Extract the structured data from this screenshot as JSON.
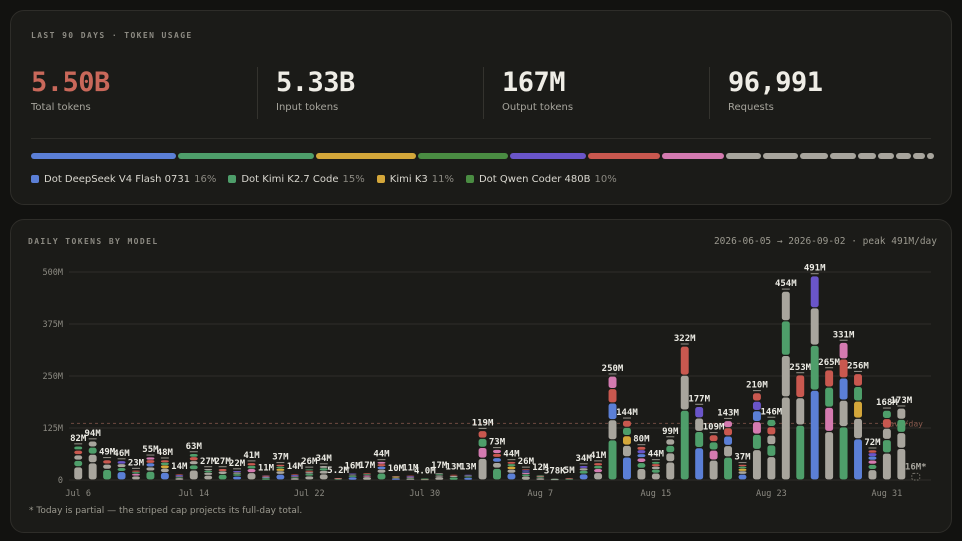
{
  "summary": {
    "eyebrow": "LAST 90 DAYS · TOKEN USAGE",
    "stats": [
      {
        "value": "5.50B",
        "label": "Total tokens",
        "accent": "#c9685a"
      },
      {
        "value": "5.33B",
        "label": "Input tokens"
      },
      {
        "value": "167M",
        "label": "Output tokens"
      },
      {
        "value": "96,991",
        "label": "Requests"
      }
    ],
    "mix": [
      {
        "share": 16,
        "color": "#5b7fd6"
      },
      {
        "share": 15,
        "color": "#4e9e6a"
      },
      {
        "share": 11,
        "color": "#d4a73a"
      },
      {
        "share": 10,
        "color": "#4a8c42"
      },
      {
        "share": 8.5,
        "color": "#6a55c9"
      },
      {
        "share": 8,
        "color": "#c9584f"
      },
      {
        "share": 7,
        "color": "#d47ab0"
      },
      {
        "share": 4,
        "color": "#a8a59d"
      },
      {
        "share": 4,
        "color": "#a8a59d"
      },
      {
        "share": 3.3,
        "color": "#a8a59d"
      },
      {
        "share": 3,
        "color": "#a8a59d"
      },
      {
        "share": 2.2,
        "color": "#a8a59d"
      },
      {
        "share": 2,
        "color": "#a8a59d"
      },
      {
        "share": 1.8,
        "color": "#a8a59d"
      },
      {
        "share": 1.5,
        "color": "#a8a59d"
      },
      {
        "share": 1,
        "color": "#a8a59d"
      }
    ],
    "legend": [
      {
        "name": "Dot DeepSeek V4 Flash 0731",
        "pct": "16%",
        "color": "#5b7fd6"
      },
      {
        "name": "Dot Kimi K2.7 Code",
        "pct": "15%",
        "color": "#4e9e6a"
      },
      {
        "name": "Kimi K3",
        "pct": "11%",
        "color": "#d4a73a"
      },
      {
        "name": "Dot Qwen Coder 480B",
        "pct": "10%",
        "color": "#4a8c42"
      }
    ]
  },
  "chart_header": {
    "title": "DAILY TOKENS BY MODEL",
    "range": "2026-06-05 → 2026-09-02 · peak 491M/day"
  },
  "footnote": "*  Today is partial — the striped cap projects its full-day total.",
  "chart_data": {
    "type": "bar",
    "stacked": true,
    "title": "DAILY TOKENS BY MODEL",
    "unit": "M tokens",
    "ylim": [
      0,
      500
    ],
    "yticks": [
      0,
      125,
      250,
      375,
      500
    ],
    "ytick_labels": [
      "0",
      "125M",
      "250M",
      "375M",
      "500M"
    ],
    "xtick_labels": [
      "Jul 6",
      "Jul 14",
      "Jul 22",
      "Jul 30",
      "Aug 7",
      "Aug 15",
      "Aug 23",
      "Aug 31"
    ],
    "reference_line_label": "avg/day",
    "partial_day_projected_label": "16M*",
    "daily": [
      {
        "label": "82M",
        "value": 82
      },
      {
        "label": "94M",
        "value": 94
      },
      {
        "label": "49M",
        "value": 49
      },
      {
        "label": "46M",
        "value": 46
      },
      {
        "label": "23M",
        "value": 23
      },
      {
        "label": "55M",
        "value": 55
      },
      {
        "label": "48M",
        "value": 48
      },
      {
        "label": "14M",
        "value": 14
      },
      {
        "label": "63M",
        "value": 63
      },
      {
        "label": "27M",
        "value": 27
      },
      {
        "label": "27M",
        "value": 27
      },
      {
        "label": "22M",
        "value": 22
      },
      {
        "label": "41M",
        "value": 41
      },
      {
        "label": "11M",
        "value": 11
      },
      {
        "label": "37M",
        "value": 37
      },
      {
        "label": "14M",
        "value": 14
      },
      {
        "label": "26M",
        "value": 26
      },
      {
        "label": "34M",
        "value": 34
      },
      {
        "label": "5.2M",
        "value": 5.2
      },
      {
        "label": "16M",
        "value": 16
      },
      {
        "label": "17M",
        "value": 17
      },
      {
        "label": "44M",
        "value": 44
      },
      {
        "label": "10M",
        "value": 10
      },
      {
        "label": "11M",
        "value": 11
      },
      {
        "label": "4.0M",
        "value": 4.0
      },
      {
        "label": "17M",
        "value": 17
      },
      {
        "label": "13M",
        "value": 13
      },
      {
        "label": "13M",
        "value": 13
      },
      {
        "label": "119M",
        "value": 119
      },
      {
        "label": "73M",
        "value": 73
      },
      {
        "label": "44M",
        "value": 44
      },
      {
        "label": "26M",
        "value": 26
      },
      {
        "label": "12M",
        "value": 12
      },
      {
        "label": "378K",
        "value": 0.378
      },
      {
        "label": "5M",
        "value": 5
      },
      {
        "label": "34M",
        "value": 34
      },
      {
        "label": "41M",
        "value": 41
      },
      {
        "label": "250M",
        "value": 250
      },
      {
        "label": "144M",
        "value": 144
      },
      {
        "label": "80M",
        "value": 80
      },
      {
        "label": "44M",
        "value": 44
      },
      {
        "label": "99M",
        "value": 99
      },
      {
        "label": "322M",
        "value": 322
      },
      {
        "label": "177M",
        "value": 177
      },
      {
        "label": "109M",
        "value": 109
      },
      {
        "label": "143M",
        "value": 143
      },
      {
        "label": "37M",
        "value": 37
      },
      {
        "label": "210M",
        "value": 210
      },
      {
        "label": "146M",
        "value": 146
      },
      {
        "label": "454M",
        "value": 454
      },
      {
        "label": "253M",
        "value": 253
      },
      {
        "label": "491M",
        "value": 491
      },
      {
        "label": "265M",
        "value": 265
      },
      {
        "label": "331M",
        "value": 331
      },
      {
        "label": "256M",
        "value": 256
      },
      {
        "label": "72M",
        "value": 72
      },
      {
        "label": "168M",
        "value": 168
      },
      {
        "label": "173M",
        "value": 173
      }
    ],
    "colors": {
      "deepseek": "#5b7fd6",
      "kimi_code": "#4e9e6a",
      "kimi_k3": "#d4a73a",
      "qwen": "#4a8c42",
      "purple": "#6a55c9",
      "red": "#c9584f",
      "pink": "#d47ab0",
      "gray": "#a8a59d"
    }
  }
}
